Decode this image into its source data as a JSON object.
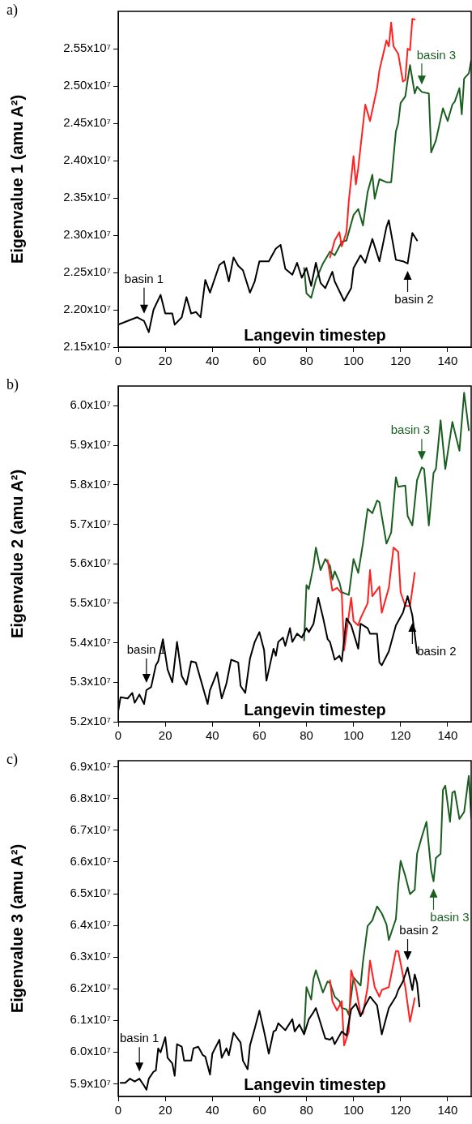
{
  "chart_data": [
    {
      "type": "line",
      "title": "a)",
      "xlabel": "Langevin timestep",
      "ylabel": "Eigenvalue 1 (amu A²)",
      "xlim": [
        0,
        150
      ],
      "xticks": [
        0,
        20,
        40,
        60,
        80,
        100,
        120,
        140
      ],
      "ylim": [
        21500000.0,
        26000000.0
      ],
      "yticks": [
        {
          "value": 21500000.0,
          "label": "2.15x10⁷"
        },
        {
          "value": 22000000.0,
          "label": "2.20x10⁷"
        },
        {
          "value": 22500000.0,
          "label": "2.25x10⁷"
        },
        {
          "value": 23000000.0,
          "label": "2.30x10⁷"
        },
        {
          "value": 23500000.0,
          "label": "2.35x10⁷"
        },
        {
          "value": 24000000.0,
          "label": "2.40x10⁷"
        },
        {
          "value": 24500000.0,
          "label": "2.45x10⁷"
        },
        {
          "value": 25000000.0,
          "label": "2.50x10⁷"
        },
        {
          "value": 25500000.0,
          "label": "2.55x10⁷"
        }
      ],
      "series": [
        {
          "color": "#000000",
          "x": [
            0,
            4,
            8,
            11,
            13,
            15,
            18,
            20,
            23,
            24,
            27,
            29,
            31,
            33,
            35,
            37,
            39,
            43,
            45,
            47,
            49,
            51,
            53,
            56,
            58,
            60,
            64,
            67,
            69,
            71,
            74,
            76,
            78,
            80,
            82,
            84,
            86,
            88,
            91,
            92,
            94,
            96,
            99,
            100,
            103,
            105,
            108,
            111,
            114,
            115,
            118,
            121,
            123,
            125,
            127
          ],
          "values": [
            21800000.0,
            21850000.0,
            21900000.0,
            21850000.0,
            21700000.0,
            22000000.0,
            22200000.0,
            21950000.0,
            21950000.0,
            21800000.0,
            21900000.0,
            22170000.0,
            21950000.0,
            21970000.0,
            21900000.0,
            22400000.0,
            22230000.0,
            22600000.0,
            22650000.0,
            22380000.0,
            22700000.0,
            22590000.0,
            22530000.0,
            22230000.0,
            22380000.0,
            22650000.0,
            22650000.0,
            22820000.0,
            22870000.0,
            22550000.0,
            22470000.0,
            22630000.0,
            22430000.0,
            22560000.0,
            22320000.0,
            22630000.0,
            22360000.0,
            22290000.0,
            22510000.0,
            22380000.0,
            22250000.0,
            22120000.0,
            22290000.0,
            22560000.0,
            22730000.0,
            22630000.0,
            22950000.0,
            22650000.0,
            23110000.0,
            23200000.0,
            22670000.0,
            22650000.0,
            22620000.0,
            23030000.0,
            22930000.0
          ]
        },
        {
          "color": "#ff2020",
          "x": [
            90,
            92,
            94,
            95,
            97,
            98,
            100,
            101,
            102,
            105,
            107,
            110,
            111,
            114,
            115,
            116,
            117,
            119,
            121,
            122,
            123,
            124,
            125,
            126
          ],
          "values": [
            22700000.0,
            22930000.0,
            23040000.0,
            22850000.0,
            23040000.0,
            23460000.0,
            24060000.0,
            23680000.0,
            23900000.0,
            24750000.0,
            24530000.0,
            24970000.0,
            25210000.0,
            25610000.0,
            25530000.0,
            25850000.0,
            25530000.0,
            25430000.0,
            25060000.0,
            25080000.0,
            25500000.0,
            25480000.0,
            25900000.0,
            25890000.0
          ]
        },
        {
          "color": "#1a5e20",
          "x": [
            79,
            80,
            82,
            84,
            87,
            90,
            92,
            95,
            97,
            100,
            102,
            104,
            106,
            108,
            109,
            111,
            114,
            116,
            118,
            119,
            120,
            122,
            123,
            124,
            126,
            127,
            129,
            132,
            133,
            135,
            138,
            140,
            142,
            143,
            145,
            146,
            147,
            149,
            150
          ],
          "values": [
            22560000.0,
            22220000.0,
            22160000.0,
            22400000.0,
            22620000.0,
            22780000.0,
            22730000.0,
            22910000.0,
            22930000.0,
            23270000.0,
            23350000.0,
            23130000.0,
            23580000.0,
            23810000.0,
            23490000.0,
            23750000.0,
            23710000.0,
            23710000.0,
            24390000.0,
            24500000.0,
            24770000.0,
            24860000.0,
            25080000.0,
            25280000.0,
            24900000.0,
            24990000.0,
            24920000.0,
            24900000.0,
            24110000.0,
            24270000.0,
            24700000.0,
            24530000.0,
            24750000.0,
            24790000.0,
            24970000.0,
            24620000.0,
            25100000.0,
            25170000.0,
            25340000.0
          ]
        }
      ],
      "annotations": [
        {
          "text": "basin 1",
          "x": 11,
          "y": 21850000.0
        },
        {
          "text": "basin 2",
          "x": 123,
          "y": 22620000.0
        },
        {
          "text": "basin 3",
          "x": 129,
          "y": 24920000.0
        }
      ]
    },
    {
      "type": "line",
      "title": "b)",
      "xlabel": "Langevin timestep",
      "ylabel": "Eigenvalue 2 (amu A²)",
      "xlim": [
        0,
        150
      ],
      "xticks": [
        0,
        20,
        40,
        60,
        80,
        100,
        120,
        140
      ],
      "ylim": [
        52000000.0,
        60500000.0
      ],
      "yticks": [
        {
          "value": 52000000.0,
          "label": "5.2x10⁷"
        },
        {
          "value": 53000000.0,
          "label": "5.3x10⁷"
        },
        {
          "value": 54000000.0,
          "label": "5.4x10⁷"
        },
        {
          "value": 55000000.0,
          "label": "5.5x10⁷"
        },
        {
          "value": 56000000.0,
          "label": "5.6x10⁷"
        },
        {
          "value": 57000000.0,
          "label": "5.7x10⁷"
        },
        {
          "value": 58000000.0,
          "label": "5.8x10⁷"
        },
        {
          "value": 59000000.0,
          "label": "5.9x10⁷"
        },
        {
          "value": 60000000.0,
          "label": "6.0x10⁷"
        }
      ],
      "series": [
        {
          "color": "#000000",
          "x": [
            0,
            1,
            4,
            6,
            7,
            9,
            11,
            12,
            14,
            16,
            17,
            19,
            21,
            23,
            25,
            27,
            29,
            31,
            33,
            36,
            38,
            39,
            42,
            44,
            46,
            48,
            51,
            52,
            54,
            56,
            58,
            60,
            62,
            63,
            66,
            67,
            68,
            70,
            71,
            73,
            74,
            76,
            78,
            80,
            81,
            83,
            85,
            87,
            89,
            90,
            92,
            94,
            95,
            97,
            99,
            102,
            103,
            106,
            107,
            110,
            111,
            112,
            115,
            118,
            121,
            123,
            125,
            127
          ],
          "values": [
            52270000.0,
            52620000.0,
            52590000.0,
            52730000.0,
            52480000.0,
            52690000.0,
            52450000.0,
            52800000.0,
            52880000.0,
            53430000.0,
            53530000.0,
            54090000.0,
            53320000.0,
            53000000.0,
            54020000.0,
            53160000.0,
            52940000.0,
            53530000.0,
            53500000.0,
            52870000.0,
            52450000.0,
            52800000.0,
            53250000.0,
            52590000.0,
            52970000.0,
            53570000.0,
            53500000.0,
            52910000.0,
            52730000.0,
            53600000.0,
            54020000.0,
            54270000.0,
            53810000.0,
            53040000.0,
            53850000.0,
            53670000.0,
            54020000.0,
            54130000.0,
            53920000.0,
            54370000.0,
            54020000.0,
            54230000.0,
            54130000.0,
            54370000.0,
            54270000.0,
            54480000.0,
            55140000.0,
            54650000.0,
            54090000.0,
            54020000.0,
            53570000.0,
            53670000.0,
            53530000.0,
            54620000.0,
            54440000.0,
            53850000.0,
            54480000.0,
            54370000.0,
            54230000.0,
            54230000.0,
            53500000.0,
            53430000.0,
            53780000.0,
            54440000.0,
            54760000.0,
            55180000.0,
            54690000.0,
            53740000.0
          ]
        },
        {
          "color": "#ff2020",
          "x": [
            89,
            91,
            93,
            95,
            96,
            99,
            100,
            102,
            103,
            106,
            107,
            108,
            111,
            112,
            115,
            117,
            119,
            120,
            122,
            124,
            126
          ],
          "values": [
            56090000.0,
            55320000.0,
            55390000.0,
            55250000.0,
            53810000.0,
            55140000.0,
            54550000.0,
            54440000.0,
            54620000.0,
            55000000.0,
            55840000.0,
            55180000.0,
            55420000.0,
            54760000.0,
            55390000.0,
            56410000.0,
            56300000.0,
            55280000.0,
            54930000.0,
            54930000.0,
            55770000.0
          ]
        },
        {
          "color": "#1a5e20",
          "x": [
            79,
            80,
            81,
            83,
            84,
            86,
            88,
            90,
            91,
            92,
            94,
            95,
            98,
            100,
            102,
            104,
            106,
            108,
            110,
            111,
            114,
            116,
            118,
            119,
            122,
            123,
            125,
            127,
            129,
            130,
            132,
            134,
            135,
            137,
            139,
            142,
            145,
            147,
            149
          ],
          "values": [
            54060000.0,
            55460000.0,
            55360000.0,
            55950000.0,
            56410000.0,
            55840000.0,
            56120000.0,
            55950000.0,
            55600000.0,
            55810000.0,
            55530000.0,
            55280000.0,
            55210000.0,
            56120000.0,
            55770000.0,
            56510000.0,
            57390000.0,
            57280000.0,
            57600000.0,
            57560000.0,
            56510000.0,
            56790000.0,
            58190000.0,
            57950000.0,
            57980000.0,
            57210000.0,
            56970000.0,
            58120000.0,
            58440000.0,
            58400000.0,
            56970000.0,
            58300000.0,
            58400000.0,
            59630000.0,
            58400000.0,
            59590000.0,
            58860000.0,
            60330000.0,
            59380000.0
          ]
        }
      ],
      "annotations": [
        {
          "text": "basin 1",
          "x": 12,
          "y": 52800000.0
        },
        {
          "text": "basin 2",
          "x": 125,
          "y": 54690000.0
        },
        {
          "text": "basin 3",
          "x": 129,
          "y": 58440000.0
        }
      ]
    },
    {
      "type": "line",
      "title": "c)",
      "xlabel": "Langevin timestep",
      "ylabel": "Eigenvalue 3 (amu A²)",
      "xlim": [
        0,
        150
      ],
      "xticks": [
        0,
        20,
        40,
        60,
        80,
        100,
        120,
        140
      ],
      "ylim": [
        58600000.0,
        69200000.0
      ],
      "yticks": [
        {
          "value": 59000000.0,
          "label": "5.9x10⁷"
        },
        {
          "value": 60000000.0,
          "label": "6.0x10⁷"
        },
        {
          "value": 61000000.0,
          "label": "6.1x10⁷"
        },
        {
          "value": 62000000.0,
          "label": "6.2x10⁷"
        },
        {
          "value": 63000000.0,
          "label": "6.3x10⁷"
        },
        {
          "value": 64000000.0,
          "label": "6.4x10⁷"
        },
        {
          "value": 65000000.0,
          "label": "6.5x10⁷"
        },
        {
          "value": 66000000.0,
          "label": "6.6x10⁷"
        },
        {
          "value": 67000000.0,
          "label": "6.7x10⁷"
        },
        {
          "value": 68000000.0,
          "label": "6.8x10⁷"
        },
        {
          "value": 69000000.0,
          "label": "6.9x10⁷"
        }
      ],
      "series": [
        {
          "color": "#000000",
          "x": [
            1,
            3,
            5,
            7,
            9,
            11,
            12,
            13,
            15,
            16,
            17,
            18,
            20,
            21,
            23,
            24,
            25,
            27,
            28,
            31,
            32,
            34,
            36,
            37,
            39,
            40,
            43,
            44,
            46,
            47,
            49,
            52,
            53,
            55,
            56,
            58,
            60,
            62,
            64,
            66,
            67,
            68,
            71,
            74,
            75,
            77,
            79,
            81,
            83,
            84,
            86,
            88,
            90,
            91,
            92,
            95,
            97,
            99,
            101,
            103,
            105,
            107,
            108,
            110,
            112,
            115,
            118,
            119,
            121,
            123,
            125,
            126,
            127,
            128
          ],
          "values": [
            59030000.0,
            59030000.0,
            59160000.0,
            59070000.0,
            59160000.0,
            58940000.0,
            58810000.0,
            59160000.0,
            59380000.0,
            59420000.0,
            60120000.0,
            59990000.0,
            60470000.0,
            59820000.0,
            59640000.0,
            59250000.0,
            60250000.0,
            60170000.0,
            59730000.0,
            59730000.0,
            60120000.0,
            60170000.0,
            59900000.0,
            59860000.0,
            59290000.0,
            59950000.0,
            60390000.0,
            59820000.0,
            60120000.0,
            59900000.0,
            60610000.0,
            60300000.0,
            59730000.0,
            59460000.0,
            60210000.0,
            60740000.0,
            61310000.0,
            60650000.0,
            59950000.0,
            60650000.0,
            60690000.0,
            60910000.0,
            60690000.0,
            61040000.0,
            60650000.0,
            60870000.0,
            60560000.0,
            61040000.0,
            61260000.0,
            61390000.0,
            60910000.0,
            60430000.0,
            60390000.0,
            60470000.0,
            60250000.0,
            60650000.0,
            60520000.0,
            61350000.0,
            61530000.0,
            61130000.0,
            61480000.0,
            61750000.0,
            61660000.0,
            61480000.0,
            60560000.0,
            61390000.0,
            61750000.0,
            61960000.0,
            62230000.0,
            62670000.0,
            61960000.0,
            62450000.0,
            62180000.0,
            61440000.0
          ]
        },
        {
          "color": "#ff2020",
          "x": [
            90,
            91,
            93,
            95,
            96,
            98,
            99,
            101,
            103,
            104,
            106,
            107,
            109,
            111,
            112,
            115,
            118,
            119,
            122,
            124,
            126
          ],
          "values": [
            62270000.0,
            61610000.0,
            61310000.0,
            61610000.0,
            60210000.0,
            60650000.0,
            62580000.0,
            62050000.0,
            61180000.0,
            61220000.0,
            62050000.0,
            62890000.0,
            62050000.0,
            61750000.0,
            61960000.0,
            62050000.0,
            63190000.0,
            63190000.0,
            62050000.0,
            60960000.0,
            61700000.0
          ]
        },
        {
          "color": "#1a5e20",
          "x": [
            79,
            80,
            82,
            83,
            84,
            87,
            89,
            90,
            92,
            94,
            95,
            97,
            98,
            100,
            103,
            104,
            106,
            108,
            110,
            112,
            114,
            115,
            118,
            119,
            120,
            122,
            124,
            126,
            127,
            129,
            131,
            133,
            134,
            135,
            137,
            138,
            139,
            141,
            142,
            143,
            145,
            147,
            149,
            150
          ],
          "values": [
            60610000.0,
            62050000.0,
            61660000.0,
            62320000.0,
            62580000.0,
            61880000.0,
            62230000.0,
            62180000.0,
            61750000.0,
            61610000.0,
            61390000.0,
            61350000.0,
            61180000.0,
            62360000.0,
            62100000.0,
            62840000.0,
            63980000.0,
            64160000.0,
            64600000.0,
            64380000.0,
            64030000.0,
            63540000.0,
            64200000.0,
            65250000.0,
            66040000.0,
            65560000.0,
            64990000.0,
            65120000.0,
            66260000.0,
            66790000.0,
            67270000.0,
            65740000.0,
            65390000.0,
            66130000.0,
            66260000.0,
            68280000.0,
            68410000.0,
            67270000.0,
            68190000.0,
            68240000.0,
            67360000.0,
            67580000.0,
            68720000.0,
            67400000.0
          ]
        }
      ],
      "annotations": [
        {
          "text": "basin 1",
          "x": 9,
          "y": 59160000.0
        },
        {
          "text": "basin 2",
          "x": 123,
          "y": 62670000.0
        },
        {
          "text": "basin 3",
          "x": 134,
          "y": 65390000.0
        }
      ]
    }
  ]
}
